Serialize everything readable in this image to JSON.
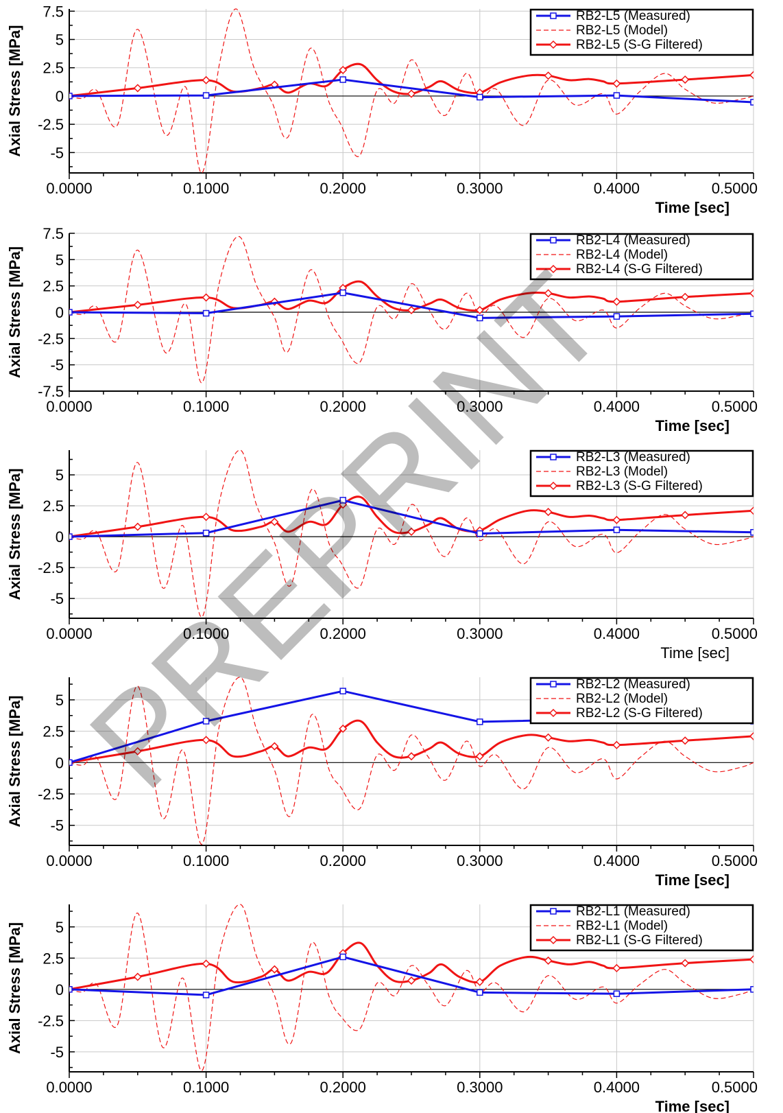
{
  "watermark": "PREPRINT",
  "colors": {
    "measured": "#1414e6",
    "model": "#f01414",
    "filtered": "#f01414",
    "grid": "#c8c8c8"
  },
  "chart_data": [
    {
      "type": "line",
      "ylabel": "Axial Stress [MPa]",
      "xlabel": "Time [sec]",
      "xlabel_bold": true,
      "xlim": [
        0,
        0.5
      ],
      "ylim": [
        -6.8,
        7.7
      ],
      "xticks": [
        "0.0000",
        "0.1000",
        "0.2000",
        "0.3000",
        "0.4000",
        "0.5000"
      ],
      "yticks": [
        {
          "v": 7.5,
          "label": "7.5"
        },
        {
          "v": 5,
          "label": "5"
        },
        {
          "v": 2.5,
          "label": "2.5"
        },
        {
          "v": 0,
          "label": "0"
        },
        {
          "v": -2.5,
          "label": "-2.5"
        },
        {
          "v": -5,
          "label": "-5"
        }
      ],
      "legend_position": "top-right",
      "series": [
        {
          "name": "RB2-L5 (Measured)",
          "x": [
            0,
            0.1,
            0.2,
            0.3,
            0.4,
            0.5
          ],
          "y": [
            0,
            0.05,
            1.45,
            -0.1,
            0.05,
            -0.55
          ]
        },
        {
          "name": "RB2-L5 (Model)",
          "x": [
            0,
            0.01,
            0.02,
            0.035,
            0.05,
            0.07,
            0.085,
            0.097,
            0.11,
            0.122,
            0.135,
            0.148,
            0.16,
            0.176,
            0.19,
            0.198,
            0.212,
            0.225,
            0.238,
            0.25,
            0.262,
            0.275,
            0.29,
            0.3,
            0.312,
            0.332,
            0.35,
            0.37,
            0.39,
            0.4,
            0.417,
            0.435,
            0.45,
            0.47,
            0.49,
            0.5
          ],
          "y": [
            0,
            -0.2,
            0.5,
            -2.6,
            5.9,
            -3.4,
            0.8,
            -6.8,
            3.0,
            7.7,
            2.5,
            -0.5,
            -3.6,
            4.2,
            -0.6,
            -2.4,
            -5.3,
            0.5,
            -0.6,
            3.2,
            0.4,
            -1.7,
            2.0,
            -0.3,
            0.6,
            -2.6,
            1.4,
            -0.8,
            0.2,
            -1.6,
            0.4,
            2.0,
            0.6,
            -0.6,
            -0.3,
            0
          ]
        },
        {
          "name": "RB2-L5 (S-G Filtered)",
          "x": [
            0,
            0.05,
            0.1,
            0.12,
            0.14,
            0.15,
            0.16,
            0.175,
            0.188,
            0.2,
            0.213,
            0.225,
            0.237,
            0.25,
            0.263,
            0.272,
            0.285,
            0.3,
            0.315,
            0.335,
            0.35,
            0.365,
            0.38,
            0.39,
            0.4,
            0.45,
            0.5
          ],
          "y": [
            0,
            0.7,
            1.4,
            0.4,
            0.7,
            1.0,
            0.3,
            1.1,
            0.9,
            2.3,
            2.8,
            1.4,
            0.4,
            0.2,
            0.8,
            1.3,
            0.5,
            0.3,
            1.2,
            1.8,
            1.8,
            1.4,
            1.5,
            1.3,
            1.1,
            1.45,
            1.85
          ]
        }
      ]
    },
    {
      "type": "line",
      "ylabel": "Axial Stress [MPa]",
      "xlabel": "Time [sec]",
      "xlabel_bold": true,
      "xlim": [
        0,
        0.5
      ],
      "ylim": [
        -7.5,
        7.5
      ],
      "xticks": [
        "0.0000",
        "0.1000",
        "0.2000",
        "0.3000",
        "0.4000",
        "0.5000"
      ],
      "yticks": [
        {
          "v": 7.5,
          "label": "7.5"
        },
        {
          "v": 5,
          "label": "5"
        },
        {
          "v": 2.5,
          "label": "2.5"
        },
        {
          "v": 0,
          "label": "0"
        },
        {
          "v": -2.5,
          "label": "-2.5"
        },
        {
          "v": -5,
          "label": "-5"
        },
        {
          "v": -7.5,
          "label": "-7.5"
        }
      ],
      "legend_position": "top-right",
      "series": [
        {
          "name": "RB2-L4 (Measured)",
          "x": [
            0,
            0.1,
            0.2,
            0.3,
            0.4,
            0.5
          ],
          "y": [
            0,
            -0.1,
            1.85,
            -0.55,
            -0.4,
            -0.15
          ]
        },
        {
          "name": "RB2-L4 (Model)",
          "x": [
            0,
            0.01,
            0.02,
            0.035,
            0.05,
            0.07,
            0.085,
            0.097,
            0.11,
            0.124,
            0.137,
            0.15,
            0.16,
            0.176,
            0.19,
            0.198,
            0.212,
            0.225,
            0.238,
            0.25,
            0.262,
            0.275,
            0.29,
            0.3,
            0.312,
            0.332,
            0.35,
            0.37,
            0.39,
            0.4,
            0.417,
            0.435,
            0.45,
            0.47,
            0.49,
            0.5
          ],
          "y": [
            0,
            -0.2,
            0.5,
            -2.7,
            5.9,
            -3.8,
            0.8,
            -6.7,
            3.0,
            7.2,
            2.5,
            -0.5,
            -3.7,
            4.0,
            -0.6,
            -2.4,
            -4.8,
            0.5,
            -0.6,
            2.7,
            0.4,
            -1.6,
            1.8,
            -0.3,
            0.6,
            -2.4,
            1.3,
            -0.8,
            0.2,
            -1.5,
            0.4,
            1.8,
            0.6,
            -0.6,
            -0.3,
            0
          ]
        },
        {
          "name": "RB2-L4 (S-G Filtered)",
          "x": [
            0,
            0.05,
            0.1,
            0.12,
            0.14,
            0.15,
            0.16,
            0.175,
            0.188,
            0.2,
            0.213,
            0.225,
            0.237,
            0.25,
            0.263,
            0.272,
            0.285,
            0.3,
            0.315,
            0.335,
            0.35,
            0.365,
            0.38,
            0.39,
            0.4,
            0.45,
            0.5
          ],
          "y": [
            0,
            0.7,
            1.4,
            0.4,
            0.7,
            1.0,
            0.3,
            1.1,
            0.9,
            2.3,
            2.9,
            1.5,
            0.4,
            0.2,
            0.8,
            1.2,
            0.4,
            0.2,
            1.2,
            1.8,
            1.8,
            1.4,
            1.5,
            1.3,
            1.0,
            1.45,
            1.8
          ]
        }
      ]
    },
    {
      "type": "line",
      "ylabel": "Axial Stress [MPa]",
      "xlabel": "Time [sec]",
      "xlabel_bold": false,
      "xlim": [
        0,
        0.5
      ],
      "ylim": [
        -6.6,
        7.0
      ],
      "xticks": [
        "0.0000",
        "0.1000",
        "0.2000",
        "0.3000",
        "0.4000",
        "0.5000"
      ],
      "yticks": [
        {
          "v": 5,
          "label": "5"
        },
        {
          "v": 2.5,
          "label": "2.5"
        },
        {
          "v": 0,
          "label": "0"
        },
        {
          "v": -2.5,
          "label": "-2.5"
        },
        {
          "v": -5,
          "label": "-5"
        }
      ],
      "legend_position": "top-right",
      "series": [
        {
          "name": "RB2-L3 (Measured)",
          "x": [
            0,
            0.1,
            0.2,
            0.3,
            0.4,
            0.5
          ],
          "y": [
            0,
            0.3,
            2.95,
            0.25,
            0.55,
            0.35
          ]
        },
        {
          "name": "RB2-L3 (Model)",
          "x": [
            0,
            0.01,
            0.02,
            0.035,
            0.05,
            0.068,
            0.083,
            0.097,
            0.11,
            0.125,
            0.137,
            0.15,
            0.162,
            0.177,
            0.19,
            0.198,
            0.212,
            0.225,
            0.238,
            0.25,
            0.262,
            0.275,
            0.29,
            0.3,
            0.312,
            0.332,
            0.35,
            0.37,
            0.39,
            0.4,
            0.417,
            0.435,
            0.45,
            0.47,
            0.49,
            0.5
          ],
          "y": [
            0,
            -0.2,
            0.4,
            -2.7,
            6.0,
            -4.1,
            0.9,
            -6.5,
            3.0,
            7.0,
            2.5,
            -0.5,
            -3.9,
            3.8,
            -0.6,
            -2.0,
            -4.1,
            0.6,
            -0.6,
            2.6,
            0.5,
            -1.6,
            1.5,
            -0.3,
            0.6,
            -2.2,
            1.2,
            -0.8,
            0.2,
            -1.3,
            0.4,
            1.8,
            0.6,
            -0.6,
            -0.3,
            0
          ]
        },
        {
          "name": "RB2-L3 (S-G Filtered)",
          "x": [
            0,
            0.05,
            0.1,
            0.12,
            0.14,
            0.15,
            0.16,
            0.175,
            0.188,
            0.2,
            0.213,
            0.225,
            0.237,
            0.25,
            0.263,
            0.272,
            0.285,
            0.3,
            0.315,
            0.335,
            0.35,
            0.365,
            0.38,
            0.39,
            0.4,
            0.45,
            0.5
          ],
          "y": [
            0,
            0.8,
            1.6,
            0.5,
            0.8,
            1.2,
            0.4,
            1.2,
            1.0,
            2.6,
            3.2,
            1.6,
            0.4,
            0.4,
            1.0,
            1.5,
            0.6,
            0.5,
            1.4,
            2.1,
            2.0,
            1.6,
            1.7,
            1.5,
            1.35,
            1.75,
            2.1
          ]
        }
      ]
    },
    {
      "type": "line",
      "ylabel": "Axial Stress [MPa]",
      "xlabel": "Time [sec]",
      "xlabel_bold": true,
      "xlim": [
        0,
        0.5
      ],
      "ylim": [
        -6.6,
        6.8
      ],
      "xticks": [
        "0.0000",
        "0.1000",
        "0.2000",
        "0.3000",
        "0.4000",
        "0.5000"
      ],
      "yticks": [
        {
          "v": 5,
          "label": "5"
        },
        {
          "v": 2.5,
          "label": "2.5"
        },
        {
          "v": 0,
          "label": "0"
        },
        {
          "v": -2.5,
          "label": "-2.5"
        },
        {
          "v": -5,
          "label": "-5"
        }
      ],
      "legend_position": "top-right",
      "series": [
        {
          "name": "RB2-L2 (Measured)",
          "x": [
            0,
            0.1,
            0.2,
            0.3,
            0.4,
            0.5
          ],
          "y": [
            0,
            3.3,
            5.7,
            3.25,
            3.5,
            3.3
          ]
        },
        {
          "name": "RB2-L2 (Model)",
          "x": [
            0,
            0.01,
            0.02,
            0.035,
            0.05,
            0.068,
            0.083,
            0.097,
            0.11,
            0.125,
            0.137,
            0.15,
            0.162,
            0.177,
            0.19,
            0.198,
            0.212,
            0.225,
            0.238,
            0.25,
            0.262,
            0.275,
            0.29,
            0.3,
            0.312,
            0.332,
            0.35,
            0.37,
            0.39,
            0.4,
            0.417,
            0.435,
            0.45,
            0.47,
            0.49,
            0.5
          ],
          "y": [
            0,
            -0.2,
            0.4,
            -2.8,
            6.1,
            -4.4,
            1.0,
            -6.5,
            3.1,
            6.8,
            2.6,
            -0.6,
            -4.2,
            3.8,
            -0.6,
            -1.9,
            -3.7,
            0.6,
            -0.6,
            2.2,
            0.5,
            -1.4,
            1.7,
            -0.3,
            0.6,
            -2.1,
            1.2,
            -0.8,
            0.3,
            -1.3,
            0.4,
            1.7,
            0.5,
            -0.7,
            -0.4,
            0
          ]
        },
        {
          "name": "RB2-L2 (S-G Filtered)",
          "x": [
            0,
            0.05,
            0.1,
            0.12,
            0.14,
            0.15,
            0.16,
            0.175,
            0.188,
            0.2,
            0.213,
            0.225,
            0.237,
            0.25,
            0.263,
            0.272,
            0.285,
            0.3,
            0.315,
            0.335,
            0.35,
            0.365,
            0.38,
            0.39,
            0.4,
            0.45,
            0.5
          ],
          "y": [
            0,
            0.9,
            1.8,
            0.5,
            0.9,
            1.3,
            0.5,
            1.2,
            1.1,
            2.7,
            3.3,
            1.6,
            0.5,
            0.5,
            1.1,
            1.6,
            0.7,
            0.5,
            1.6,
            2.2,
            2.0,
            1.7,
            1.8,
            1.6,
            1.4,
            1.75,
            2.1
          ]
        }
      ]
    },
    {
      "type": "line",
      "ylabel": "Axial Stress [MPa]",
      "xlabel": "Time [sec]",
      "xlabel_bold": true,
      "xlim": [
        0,
        0.5
      ],
      "ylim": [
        -6.6,
        6.8
      ],
      "xticks": [
        "0.0000",
        "0.1000",
        "0.2000",
        "0.3000",
        "0.4000",
        "0.5000"
      ],
      "yticks": [
        {
          "v": 5,
          "label": "5"
        },
        {
          "v": 2.5,
          "label": "2.5"
        },
        {
          "v": 0,
          "label": "0"
        },
        {
          "v": -2.5,
          "label": "-2.5"
        },
        {
          "v": -5,
          "label": "-5"
        }
      ],
      "legend_position": "top-right",
      "series": [
        {
          "name": "RB2-L1 (Measured)",
          "x": [
            0,
            0.1,
            0.2,
            0.3,
            0.4,
            0.5
          ],
          "y": [
            0,
            -0.45,
            2.6,
            -0.25,
            -0.35,
            0.0
          ]
        },
        {
          "name": "RB2-L1 (Model)",
          "x": [
            0,
            0.01,
            0.02,
            0.035,
            0.05,
            0.068,
            0.083,
            0.097,
            0.11,
            0.125,
            0.137,
            0.15,
            0.162,
            0.177,
            0.19,
            0.198,
            0.212,
            0.225,
            0.238,
            0.25,
            0.262,
            0.275,
            0.29,
            0.3,
            0.312,
            0.332,
            0.35,
            0.37,
            0.39,
            0.4,
            0.417,
            0.435,
            0.45,
            0.47,
            0.49,
            0.5
          ],
          "y": [
            0,
            -0.2,
            0.4,
            -2.9,
            6.1,
            -4.6,
            0.9,
            -6.5,
            3.0,
            6.8,
            2.6,
            -0.5,
            -4.3,
            3.7,
            -0.6,
            -2.1,
            -3.2,
            0.5,
            -0.5,
            1.9,
            0.4,
            -1.3,
            1.5,
            -0.2,
            0.5,
            -1.8,
            1.1,
            -0.8,
            0.2,
            -1.1,
            0.4,
            1.6,
            0.5,
            -0.7,
            -0.4,
            0
          ]
        },
        {
          "name": "RB2-L1 (S-G Filtered)",
          "x": [
            0,
            0.05,
            0.1,
            0.12,
            0.14,
            0.15,
            0.16,
            0.175,
            0.188,
            0.2,
            0.213,
            0.225,
            0.237,
            0.25,
            0.263,
            0.272,
            0.285,
            0.3,
            0.315,
            0.335,
            0.35,
            0.365,
            0.38,
            0.39,
            0.4,
            0.45,
            0.5
          ],
          "y": [
            0,
            1.0,
            2.05,
            0.6,
            1.0,
            1.6,
            0.7,
            1.4,
            1.3,
            2.9,
            3.7,
            1.9,
            0.7,
            0.7,
            1.3,
            2.0,
            1.0,
            0.6,
            1.9,
            2.6,
            2.3,
            2.0,
            2.2,
            1.9,
            1.7,
            2.1,
            2.4
          ]
        }
      ]
    }
  ]
}
